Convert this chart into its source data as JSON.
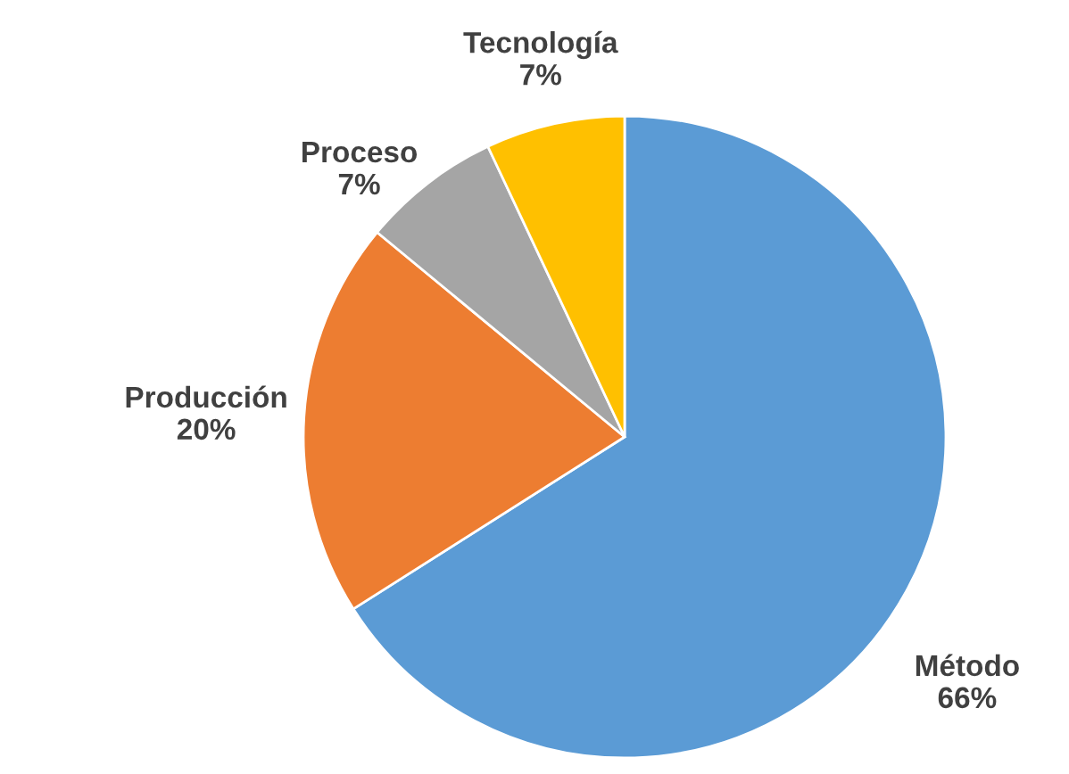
{
  "chart_data": {
    "type": "pie",
    "categories": [
      "Método",
      "Producción",
      "Proceso",
      "Tecnología"
    ],
    "values": [
      66,
      20,
      7,
      7
    ],
    "value_labels": [
      "66%",
      "20%",
      "7%",
      "7%"
    ],
    "colors": [
      "#5b9bd5",
      "#ed7d31",
      "#a5a5a5",
      "#ffc000"
    ],
    "legend": false
  }
}
